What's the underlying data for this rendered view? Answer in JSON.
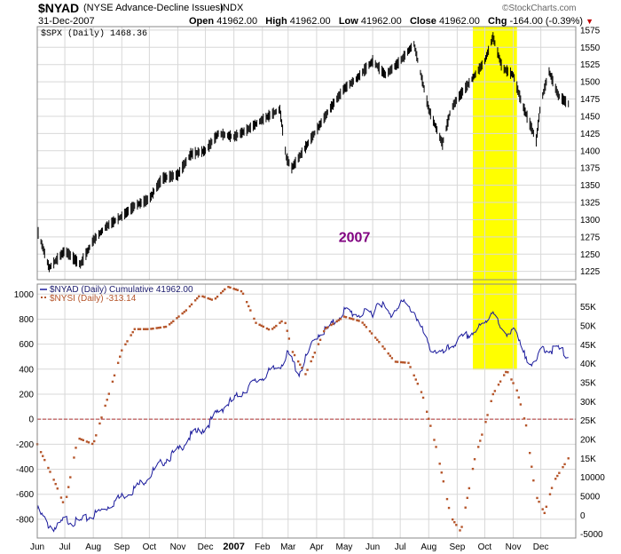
{
  "header": {
    "symbol": "$NYAD",
    "name": "(NYSE Advance-Decline Issues)",
    "exchange": "INDX",
    "date": "31-Dec-2007",
    "open_label": "Open",
    "open": "41962.00",
    "high_label": "High",
    "high": "41962.00",
    "low_label": "Low",
    "low": "41962.00",
    "close_label": "Close",
    "close": "41962.00",
    "chg_label": "Chg",
    "chg": "-164.00 (-0.39%)",
    "logo": "©StockCharts.com"
  },
  "colors": {
    "spx_bars": "#000000",
    "nyad_line": "#1a1a9c",
    "nysi_dots": "#b5552a",
    "highlight": "#ffff00",
    "zero_line": "#b03030",
    "grid": "#d8d8d8",
    "annotation": "#800080"
  },
  "chart_data": [
    {
      "type": "line",
      "title": "$SPX (Daily) 1468.36",
      "series": [
        {
          "name": "$SPX (Daily) 1468.36",
          "x": [
            "2006-06-01",
            "2006-06-14",
            "2006-07-01",
            "2006-07-18",
            "2006-08-01",
            "2006-08-15",
            "2006-09-01",
            "2006-09-15",
            "2006-10-01",
            "2006-10-15",
            "2006-11-01",
            "2006-11-15",
            "2006-12-01",
            "2006-12-15",
            "2007-01-01",
            "2007-01-15",
            "2007-02-01",
            "2007-02-20",
            "2007-02-27",
            "2007-03-05",
            "2007-03-15",
            "2007-04-01",
            "2007-04-15",
            "2007-05-01",
            "2007-05-15",
            "2007-06-01",
            "2007-06-15",
            "2007-07-01",
            "2007-07-16",
            "2007-08-01",
            "2007-08-16",
            "2007-08-25",
            "2007-09-01",
            "2007-09-15",
            "2007-10-01",
            "2007-10-10",
            "2007-10-20",
            "2007-11-01",
            "2007-11-10",
            "2007-11-26",
            "2007-12-01",
            "2007-12-10",
            "2007-12-20",
            "2007-12-31"
          ],
          "values": [
            1285,
            1230,
            1255,
            1235,
            1270,
            1290,
            1305,
            1320,
            1330,
            1360,
            1365,
            1395,
            1400,
            1425,
            1420,
            1430,
            1445,
            1460,
            1390,
            1375,
            1395,
            1430,
            1460,
            1490,
            1505,
            1530,
            1510,
            1530,
            1555,
            1460,
            1410,
            1460,
            1475,
            1500,
            1530,
            1565,
            1520,
            1510,
            1470,
            1415,
            1470,
            1515,
            1480,
            1468
          ]
        }
      ],
      "ylim": [
        1213,
        1580
      ],
      "yticks": [
        1225,
        1250,
        1275,
        1300,
        1325,
        1350,
        1375,
        1400,
        1425,
        1450,
        1475,
        1500,
        1525,
        1550,
        1575
      ],
      "annotation": "2007",
      "highlight": [
        "2007-09-18",
        "2007-11-05"
      ]
    },
    {
      "type": "line",
      "series": [
        {
          "name": "$NYAD (Daily) Cumulative 41962.00",
          "axis": "right",
          "x": [
            "2006-06-01",
            "2006-06-13",
            "2006-06-22",
            "2006-07-01",
            "2006-07-15",
            "2006-08-01",
            "2006-08-15",
            "2006-09-01",
            "2006-09-15",
            "2006-10-01",
            "2006-10-15",
            "2006-11-01",
            "2006-11-15",
            "2006-12-01",
            "2006-12-15",
            "2007-01-01",
            "2007-01-15",
            "2007-02-01",
            "2007-02-20",
            "2007-03-01",
            "2007-03-13",
            "2007-04-01",
            "2007-04-15",
            "2007-05-01",
            "2007-05-15",
            "2007-06-01",
            "2007-06-08",
            "2007-06-20",
            "2007-07-01",
            "2007-07-17",
            "2007-08-01",
            "2007-08-16",
            "2007-09-01",
            "2007-09-20",
            "2007-10-01",
            "2007-10-10",
            "2007-10-20",
            "2007-11-01",
            "2007-11-12",
            "2007-11-26",
            "2007-12-01",
            "2007-12-10",
            "2007-12-20",
            "2007-12-31"
          ],
          "values": [
            1500,
            -2500,
            -3500,
            -1000,
            -2000,
            0,
            2000,
            5000,
            7000,
            10500,
            14000,
            17000,
            21000,
            23000,
            27500,
            30500,
            33500,
            36500,
            39500,
            42500,
            37500,
            47500,
            49500,
            54000,
            53000,
            53500,
            57000,
            52500,
            56500,
            53500,
            44500,
            42500,
            46000,
            48500,
            50500,
            54500,
            47500,
            49500,
            42500,
            39500,
            44500,
            43500,
            44000,
            41962
          ]
        },
        {
          "name": "$NYSI (Daily) -313.14",
          "axis": "left",
          "x": [
            "2006-06-01",
            "2006-06-20",
            "2006-07-01",
            "2006-07-15",
            "2006-08-01",
            "2006-08-20",
            "2006-09-01",
            "2006-09-15",
            "2006-10-01",
            "2006-10-20",
            "2006-11-10",
            "2006-11-25",
            "2006-12-10",
            "2006-12-25",
            "2007-01-10",
            "2007-01-25",
            "2007-02-10",
            "2007-02-25",
            "2007-03-05",
            "2007-03-20",
            "2007-04-10",
            "2007-05-01",
            "2007-05-20",
            "2007-06-10",
            "2007-06-25",
            "2007-07-10",
            "2007-07-25",
            "2007-08-10",
            "2007-08-25",
            "2007-09-05",
            "2007-09-20",
            "2007-10-01",
            "2007-10-10",
            "2007-10-25",
            "2007-11-05",
            "2007-11-15",
            "2007-11-25",
            "2007-12-05",
            "2007-12-15",
            "2007-12-31"
          ],
          "values": [
            -200,
            -500,
            -700,
            -150,
            -200,
            250,
            550,
            720,
            720,
            740,
            870,
            990,
            950,
            1060,
            1020,
            770,
            710,
            800,
            550,
            360,
            720,
            820,
            780,
            600,
            460,
            450,
            200,
            -250,
            -780,
            -900,
            -320,
            -50,
            200,
            390,
            230,
            -50,
            -600,
            -750,
            -500,
            -313.14
          ]
        }
      ],
      "ylim_left": [
        -950,
        1080
      ],
      "yticks_left": [
        -800,
        -600,
        -400,
        -200,
        0,
        200,
        400,
        600,
        800,
        1000
      ],
      "ylim_right": [
        -6000,
        61000
      ],
      "yticks_right": [
        "55K",
        "50K",
        "45K",
        "40K",
        "35K",
        "30K",
        "25K",
        "20K",
        "15K",
        "10000",
        "5000",
        "0",
        "-5000"
      ],
      "xticks": [
        "Jun",
        "Jul",
        "Aug",
        "Sep",
        "Oct",
        "Nov",
        "Dec",
        "2007",
        "Feb",
        "Mar",
        "Apr",
        "May",
        "Jun",
        "Jul",
        "Aug",
        "Sep",
        "Oct",
        "Nov",
        "Dec"
      ],
      "zero_line": 0
    }
  ]
}
